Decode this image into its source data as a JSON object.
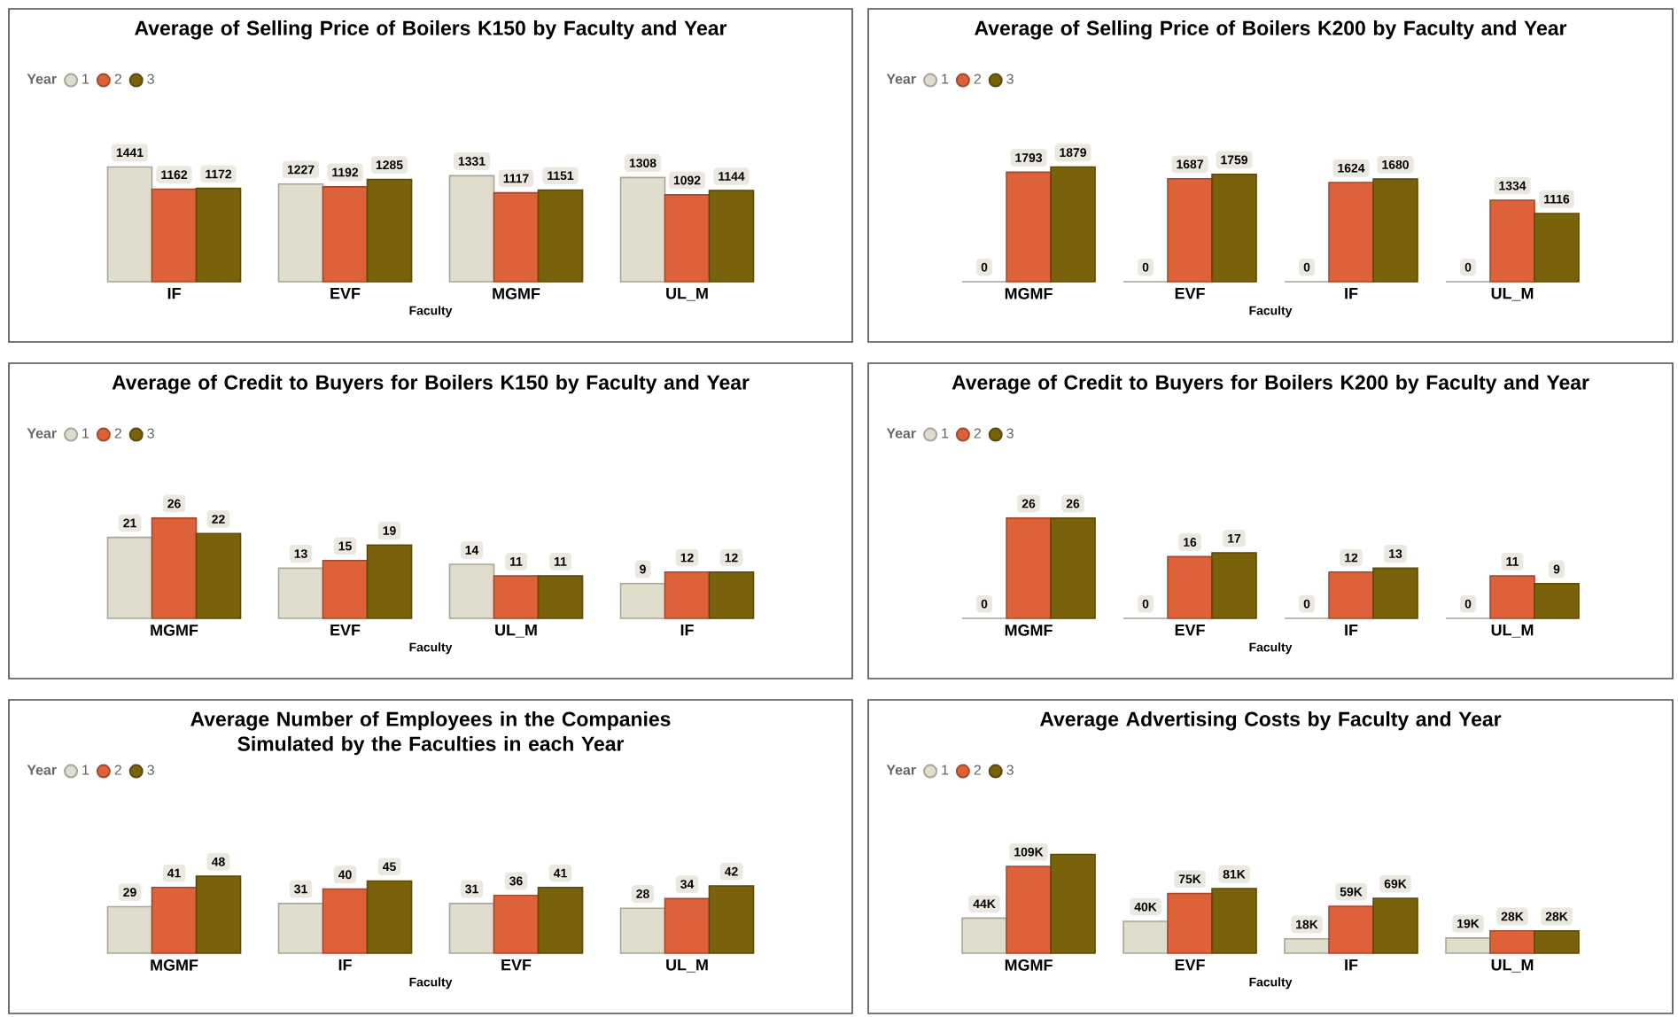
{
  "chart_data": [
    {
      "type": "bar",
      "title": "Average of Selling Price of Boilers K150 by Faculty and Year",
      "xlabel": "Faculty",
      "legend_title": "Year",
      "legend": "top left",
      "data_labels": true,
      "categories": [
        "IF",
        "EVF",
        "MGMF",
        "UL_M"
      ],
      "series": [
        {
          "name": "1",
          "color": "#e0ddcc",
          "values": [
            1441,
            1227,
            1331,
            1308
          ]
        },
        {
          "name": "2",
          "color": "#dd6139",
          "values": [
            1162,
            1192,
            1117,
            1092
          ]
        },
        {
          "name": "3",
          "color": "#7a620c",
          "values": [
            1172,
            1285,
            1151,
            1144
          ]
        }
      ]
    },
    {
      "type": "bar",
      "title": "Average of Selling Price of Boilers K200 by Faculty and Year",
      "xlabel": "Faculty",
      "legend_title": "Year",
      "legend": "top left",
      "data_labels": true,
      "categories": [
        "MGMF",
        "EVF",
        "IF",
        "UL_M"
      ],
      "series": [
        {
          "name": "1",
          "color": "#e0ddcc",
          "values": [
            0,
            0,
            0,
            0
          ]
        },
        {
          "name": "2",
          "color": "#dd6139",
          "values": [
            1793,
            1687,
            1624,
            1334
          ]
        },
        {
          "name": "3",
          "color": "#7a620c",
          "values": [
            1879,
            1759,
            1680,
            1116
          ]
        }
      ]
    },
    {
      "type": "bar",
      "title": "Average of Credit to Buyers for Boilers K150 by Faculty and Year",
      "xlabel": "Faculty",
      "legend_title": "Year",
      "legend": "top left",
      "data_labels": true,
      "categories": [
        "MGMF",
        "EVF",
        "UL_M",
        "IF"
      ],
      "series": [
        {
          "name": "1",
          "color": "#e0ddcc",
          "values": [
            21,
            13,
            14,
            9
          ]
        },
        {
          "name": "2",
          "color": "#dd6139",
          "values": [
            26,
            15,
            11,
            12
          ]
        },
        {
          "name": "3",
          "color": "#7a620c",
          "values": [
            22,
            19,
            11,
            12
          ]
        }
      ]
    },
    {
      "type": "bar",
      "title": "Average of Credit to Buyers for Boilers K200 by Faculty and Year",
      "xlabel": "Faculty",
      "legend_title": "Year",
      "legend": "top left",
      "data_labels": true,
      "categories": [
        "MGMF",
        "EVF",
        "IF",
        "UL_M"
      ],
      "series": [
        {
          "name": "1",
          "color": "#e0ddcc",
          "values": [
            0,
            0,
            0,
            0
          ]
        },
        {
          "name": "2",
          "color": "#dd6139",
          "values": [
            26,
            16,
            12,
            11
          ]
        },
        {
          "name": "3",
          "color": "#7a620c",
          "values": [
            26,
            17,
            13,
            9
          ]
        }
      ]
    },
    {
      "type": "bar",
      "title": "Average Number of Employees in the Companies Simulated by the Faculties in each Year",
      "xlabel": "Faculty",
      "legend_title": "Year",
      "legend": "top left",
      "data_labels": true,
      "categories": [
        "MGMF",
        "IF",
        "EVF",
        "UL_M"
      ],
      "series": [
        {
          "name": "1",
          "color": "#e0ddcc",
          "values": [
            29,
            31,
            31,
            28
          ]
        },
        {
          "name": "2",
          "color": "#dd6139",
          "values": [
            41,
            40,
            36,
            34
          ]
        },
        {
          "name": "3",
          "color": "#7a620c",
          "values": [
            48,
            45,
            41,
            42
          ]
        }
      ]
    },
    {
      "type": "bar",
      "title": "Average Advertising Costs by Faculty and Year",
      "xlabel": "Faculty",
      "legend_title": "Year",
      "legend": "top left",
      "categories": [
        "MGMF",
        "EVF",
        "IF",
        "UL_M"
      ],
      "series": [
        {
          "name": "1",
          "color": "#e0ddcc",
          "values": [
            44000,
            40000,
            18000,
            19000
          ],
          "value_labels": [
            "44K",
            "40K",
            "18K",
            "19K"
          ]
        },
        {
          "name": "2",
          "color": "#dd6139",
          "values": [
            109000,
            75000,
            59000,
            28000
          ],
          "value_labels": [
            "109K",
            "75K",
            "59K",
            "28K"
          ]
        },
        {
          "name": "3",
          "color": "#7a620c",
          "values": [
            124000,
            81000,
            69000,
            28000
          ],
          "value_labels": [
            null,
            "81K",
            "69K",
            "28K"
          ]
        }
      ]
    }
  ]
}
